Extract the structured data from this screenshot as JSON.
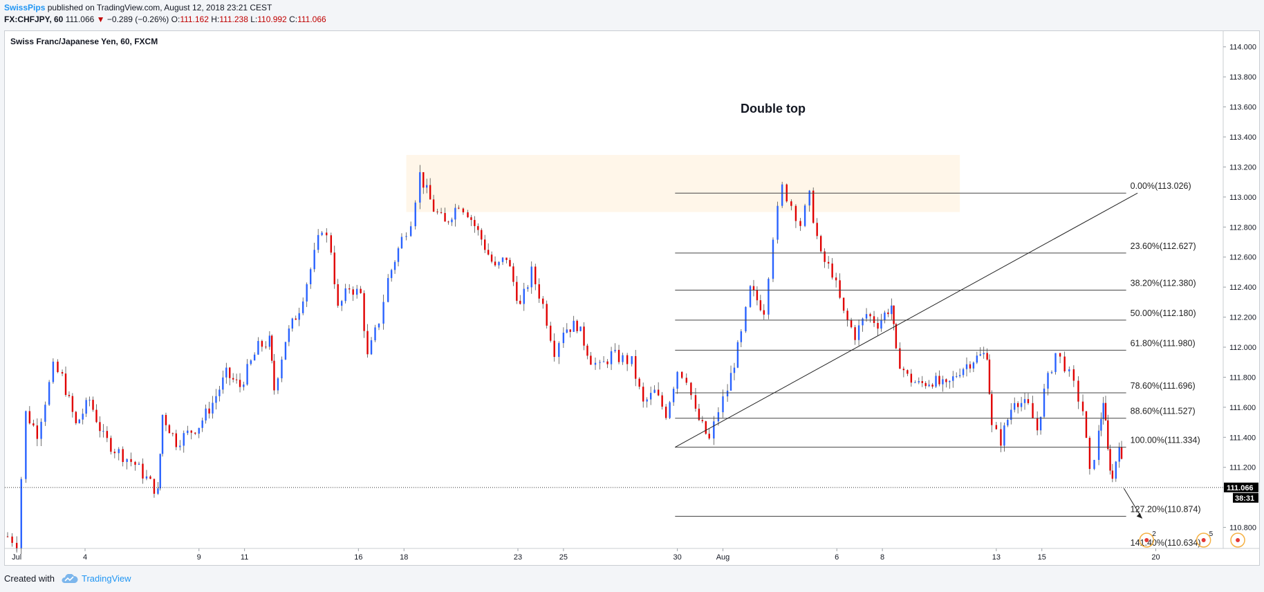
{
  "header": {
    "author": "SwissPips",
    "published_text": "published on TradingView.com, August 12, 2018 23:21 CEST"
  },
  "quote": {
    "symbol": "FX:CHFJPY, 60",
    "last": "111.066",
    "change": "−0.289 (−0.26%)",
    "o_label": "O:",
    "o": "111.162",
    "h_label": "H:",
    "h": "111.238",
    "l_label": "L:",
    "l": "110.992",
    "c_label": "C:",
    "c": "111.066"
  },
  "footer": {
    "created_with": "Created with",
    "brand": "TradingView"
  },
  "chart_data": {
    "type": "candlestick",
    "title": "Swiss Franc/Japanese Yen, 60, FXCM",
    "annotation": "Double top",
    "ylim": [
      110.66,
      114.1
    ],
    "y_ticks": [
      "114.000",
      "113.800",
      "113.600",
      "113.400",
      "113.200",
      "113.000",
      "112.800",
      "112.600",
      "112.400",
      "112.200",
      "112.000",
      "111.800",
      "111.600",
      "111.400",
      "111.200",
      "110.800"
    ],
    "x_ticks": [
      {
        "label": "Jul",
        "day": 1
      },
      {
        "label": "4",
        "day": 4
      },
      {
        "label": "9",
        "day": 9
      },
      {
        "label": "11",
        "day": 11
      },
      {
        "label": "16",
        "day": 16
      },
      {
        "label": "18",
        "day": 18
      },
      {
        "label": "23",
        "day": 23
      },
      {
        "label": "25",
        "day": 25
      },
      {
        "label": "30",
        "day": 30
      },
      {
        "label": "Aug",
        "day": 32
      },
      {
        "label": "6",
        "day": 37
      },
      {
        "label": "8",
        "day": 39
      },
      {
        "label": "13",
        "day": 44
      },
      {
        "label": "15",
        "day": 46
      },
      {
        "label": "20",
        "day": 51
      }
    ],
    "xlim_days": [
      0.6,
      52.2
    ],
    "last_price": "111.066",
    "countdown": "38:31",
    "up_color": "#2962ff",
    "down_color": "#e00000",
    "path": [
      [
        0.6,
        110.74
      ],
      [
        1.0,
        110.7
      ],
      [
        1.4,
        111.56
      ],
      [
        1.9,
        111.43
      ],
      [
        2.6,
        111.86
      ],
      [
        3.0,
        111.8
      ],
      [
        3.6,
        111.48
      ],
      [
        4.2,
        111.65
      ],
      [
        4.8,
        111.4
      ],
      [
        5.3,
        111.32
      ],
      [
        6.2,
        111.22
      ],
      [
        7.2,
        111.03
      ],
      [
        7.4,
        111.55
      ],
      [
        8.0,
        111.37
      ],
      [
        9.0,
        111.48
      ],
      [
        9.6,
        111.63
      ],
      [
        10.2,
        111.82
      ],
      [
        10.8,
        111.74
      ],
      [
        11.6,
        112.0
      ],
      [
        12.1,
        112.04
      ],
      [
        12.3,
        111.72
      ],
      [
        12.8,
        112.05
      ],
      [
        13.4,
        112.26
      ],
      [
        13.9,
        112.52
      ],
      [
        14.4,
        112.8
      ],
      [
        14.8,
        112.65
      ],
      [
        15.1,
        112.25
      ],
      [
        15.6,
        112.4
      ],
      [
        16.1,
        112.35
      ],
      [
        16.4,
        111.93
      ],
      [
        16.9,
        112.18
      ],
      [
        17.3,
        112.45
      ],
      [
        17.9,
        112.72
      ],
      [
        18.3,
        112.85
      ],
      [
        18.7,
        113.15
      ],
      [
        19.3,
        112.92
      ],
      [
        19.8,
        112.82
      ],
      [
        20.4,
        112.96
      ],
      [
        20.8,
        112.9
      ],
      [
        21.4,
        112.72
      ],
      [
        22.0,
        112.52
      ],
      [
        22.5,
        112.6
      ],
      [
        23.1,
        112.27
      ],
      [
        23.6,
        112.5
      ],
      [
        24.1,
        112.28
      ],
      [
        24.6,
        111.98
      ],
      [
        25.0,
        112.12
      ],
      [
        25.6,
        112.15
      ],
      [
        26.2,
        111.92
      ],
      [
        26.6,
        111.86
      ],
      [
        27.1,
        111.95
      ],
      [
        27.6,
        111.92
      ],
      [
        28.0,
        111.9
      ],
      [
        28.5,
        111.62
      ],
      [
        29.0,
        111.7
      ],
      [
        29.5,
        111.56
      ],
      [
        30.0,
        111.85
      ],
      [
        30.4,
        111.8
      ],
      [
        30.8,
        111.56
      ],
      [
        31.4,
        111.38
      ],
      [
        31.8,
        111.58
      ],
      [
        32.2,
        111.72
      ],
      [
        32.8,
        112.08
      ],
      [
        33.2,
        112.38
      ],
      [
        33.8,
        112.25
      ],
      [
        34.2,
        112.75
      ],
      [
        34.6,
        113.06
      ],
      [
        35.0,
        112.95
      ],
      [
        35.4,
        112.82
      ],
      [
        35.8,
        113.0
      ],
      [
        36.3,
        112.6
      ],
      [
        36.8,
        112.5
      ],
      [
        37.3,
        112.22
      ],
      [
        37.8,
        112.08
      ],
      [
        38.3,
        112.22
      ],
      [
        38.8,
        112.16
      ],
      [
        39.4,
        112.28
      ],
      [
        39.6,
        111.95
      ],
      [
        40.1,
        111.8
      ],
      [
        40.6,
        111.75
      ],
      [
        41.2,
        111.78
      ],
      [
        41.8,
        111.73
      ],
      [
        42.4,
        111.85
      ],
      [
        43.0,
        111.92
      ],
      [
        43.6,
        111.96
      ],
      [
        43.8,
        111.46
      ],
      [
        44.2,
        111.38
      ],
      [
        44.8,
        111.66
      ],
      [
        45.4,
        111.6
      ],
      [
        45.8,
        111.45
      ],
      [
        46.1,
        111.7
      ],
      [
        46.6,
        111.96
      ],
      [
        47.0,
        111.88
      ],
      [
        47.4,
        111.74
      ],
      [
        47.8,
        111.58
      ],
      [
        48.1,
        111.15
      ],
      [
        48.5,
        111.42
      ],
      [
        48.7,
        111.65
      ],
      [
        48.9,
        111.3
      ],
      [
        49.1,
        111.12
      ],
      [
        49.4,
        111.38
      ],
      [
        49.6,
        111.06
      ]
    ],
    "fib_levels": [
      {
        "label": "0.00%(113.026)",
        "price": 113.026
      },
      {
        "label": "23.60%(112.627)",
        "price": 112.627
      },
      {
        "label": "38.20%(112.380)",
        "price": 112.38
      },
      {
        "label": "50.00%(112.180)",
        "price": 112.18
      },
      {
        "label": "61.80%(111.980)",
        "price": 111.98
      },
      {
        "label": "78.60%(111.696)",
        "price": 111.696
      },
      {
        "label": "88.60%(111.527)",
        "price": 111.527
      },
      {
        "label": "100.00%(111.334)",
        "price": 111.334
      },
      {
        "label": "127.20%(110.874)",
        "price": 110.874
      },
      {
        "label": "141.40%(110.634)",
        "price": 110.634
      }
    ],
    "fib_start_day": 29.9,
    "fib_end_day": 49.7,
    "trendline": {
      "from": [
        29.9,
        111.334
      ],
      "to": [
        50.2,
        113.026
      ]
    },
    "zone": {
      "from_day": 18.1,
      "to_day": 42.4,
      "top": 113.28,
      "bottom": 112.9,
      "color": "#fff2e0"
    },
    "forecast_arrow": {
      "from": [
        49.6,
        111.06
      ],
      "to": [
        50.4,
        110.86
      ]
    },
    "event_markers": [
      {
        "day": 50.6,
        "label": "2"
      },
      {
        "day": 53.1,
        "label": "5"
      },
      {
        "day": 54.6,
        "label": ""
      }
    ]
  }
}
